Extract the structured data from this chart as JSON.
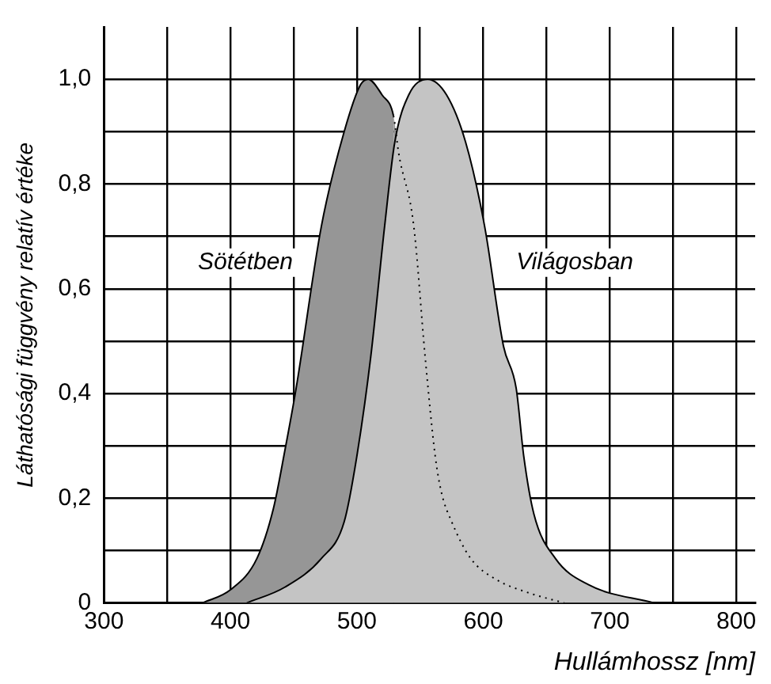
{
  "chart_data": {
    "type": "area",
    "xlabel": "Hullámhossz [nm]",
    "ylabel": "Láthatósági függvény relatív értéke",
    "xlim": [
      300,
      815
    ],
    "ylim": [
      0,
      1.1
    ],
    "xticks": [
      300,
      {
        "value": 350,
        "label": null
      },
      400,
      {
        "value": 450,
        "label": null
      },
      500,
      {
        "value": 550,
        "label": null
      },
      600,
      {
        "value": 650,
        "label": null
      },
      700,
      {
        "value": 750,
        "label": null
      },
      800
    ],
    "yticks": [
      {
        "value": 0,
        "label": "0"
      },
      {
        "value": 0.1,
        "label": null
      },
      {
        "value": 0.2,
        "label": "0,2"
      },
      {
        "value": 0.3,
        "label": null
      },
      {
        "value": 0.4,
        "label": "0,4"
      },
      {
        "value": 0.5,
        "label": null
      },
      {
        "value": 0.6,
        "label": "0,6"
      },
      {
        "value": 0.7,
        "label": null
      },
      {
        "value": 0.8,
        "label": "0,8"
      },
      {
        "value": 0.9,
        "label": null
      },
      {
        "value": 1,
        "label": "1,0"
      }
    ],
    "grid": true,
    "legend": false,
    "series": [
      {
        "name": "Sötétben",
        "color": "#969696",
        "x": [
          378,
          400,
          421,
          434,
          443,
          452,
          472,
          490,
          503,
          509,
          520,
          529,
          533,
          545,
          554,
          562,
          567,
          575,
          590,
          610,
          635,
          664
        ],
        "values": [
          0,
          0.025,
          0.085,
          0.18,
          0.29,
          0.41,
          0.72,
          0.9,
          0.99,
          1,
          0.97,
          0.93,
          0.86,
          0.72,
          0.47,
          0.28,
          0.21,
          0.155,
          0.085,
          0.045,
          0.02,
          0
        ]
      },
      {
        "name": "Világosban",
        "color": "#c4c4c4",
        "x": [
          413,
          443,
          472,
          490,
          500,
          511,
          522,
          530,
          541,
          556,
          571,
          586,
          601,
          616,
          626,
          632,
          640,
          657,
          683,
          735
        ],
        "values": [
          0,
          0.03,
          0.085,
          0.155,
          0.28,
          0.47,
          0.72,
          0.88,
          0.97,
          1,
          0.97,
          0.88,
          0.72,
          0.49,
          0.41,
          0.28,
          0.17,
          0.085,
          0.035,
          0
        ]
      }
    ]
  }
}
